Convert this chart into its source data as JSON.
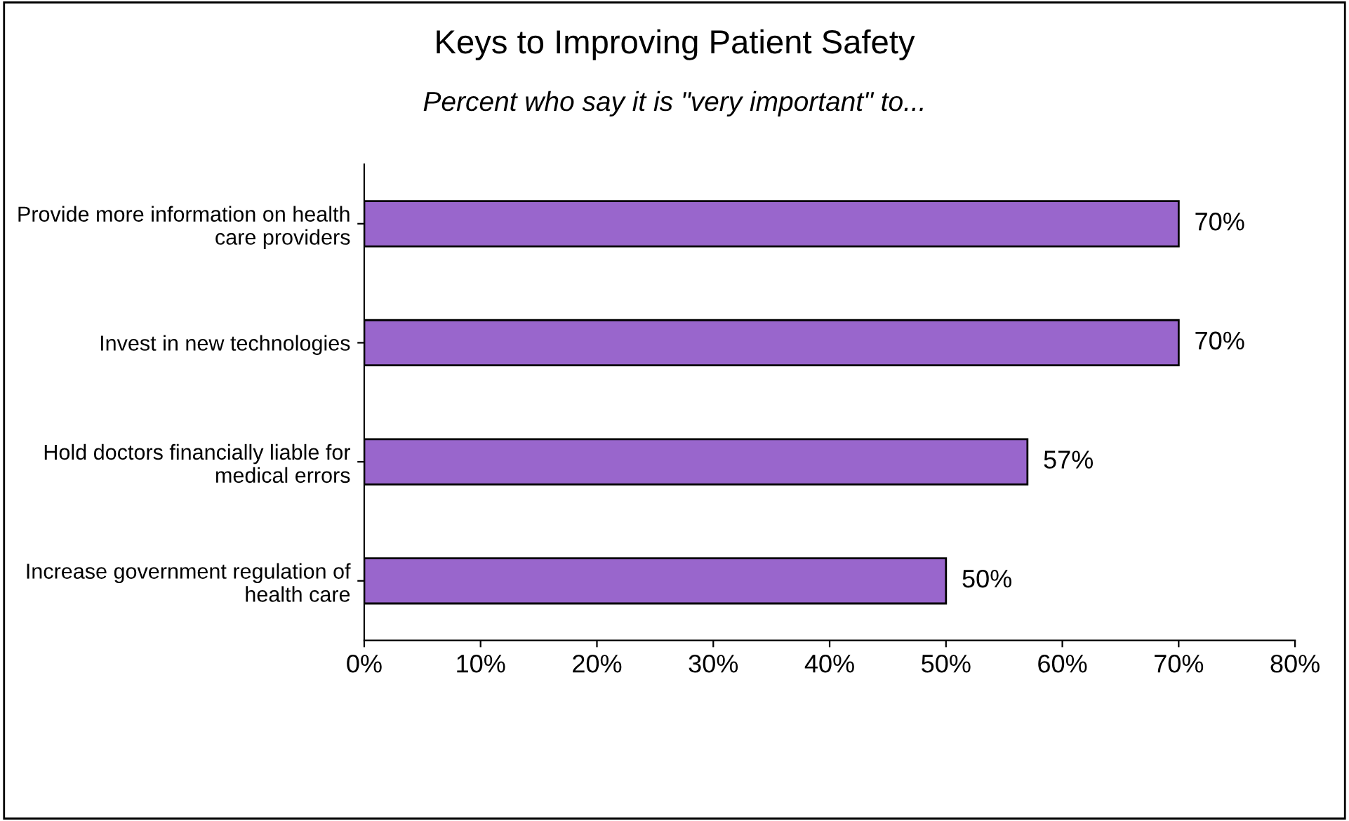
{
  "chart_data": {
    "type": "bar",
    "orientation": "horizontal",
    "title": "Keys to Improving Patient Safety",
    "subtitle": "Percent who say it is \"very important\" to...",
    "categories": [
      "Provide more information on health care providers",
      "Invest in new technologies",
      "Hold doctors financially liable for medical errors",
      "Increase government regulation of health care"
    ],
    "values": [
      70,
      70,
      57,
      50
    ],
    "color": "#9966cc",
    "value_labels": [
      "70%",
      "70%",
      "57%",
      "50%"
    ],
    "xlim": [
      0,
      80
    ],
    "xticks": [
      {
        "value": 0,
        "label": "0%"
      },
      {
        "value": 10,
        "label": "10%"
      },
      {
        "value": 20,
        "label": "20%"
      },
      {
        "value": 30,
        "label": "30%"
      },
      {
        "value": 40,
        "label": "40%"
      },
      {
        "value": 50,
        "label": "50%"
      },
      {
        "value": 60,
        "label": "60%"
      },
      {
        "value": 70,
        "label": "70%"
      },
      {
        "value": 80,
        "label": "80%"
      }
    ],
    "grid": false,
    "legend": false
  }
}
